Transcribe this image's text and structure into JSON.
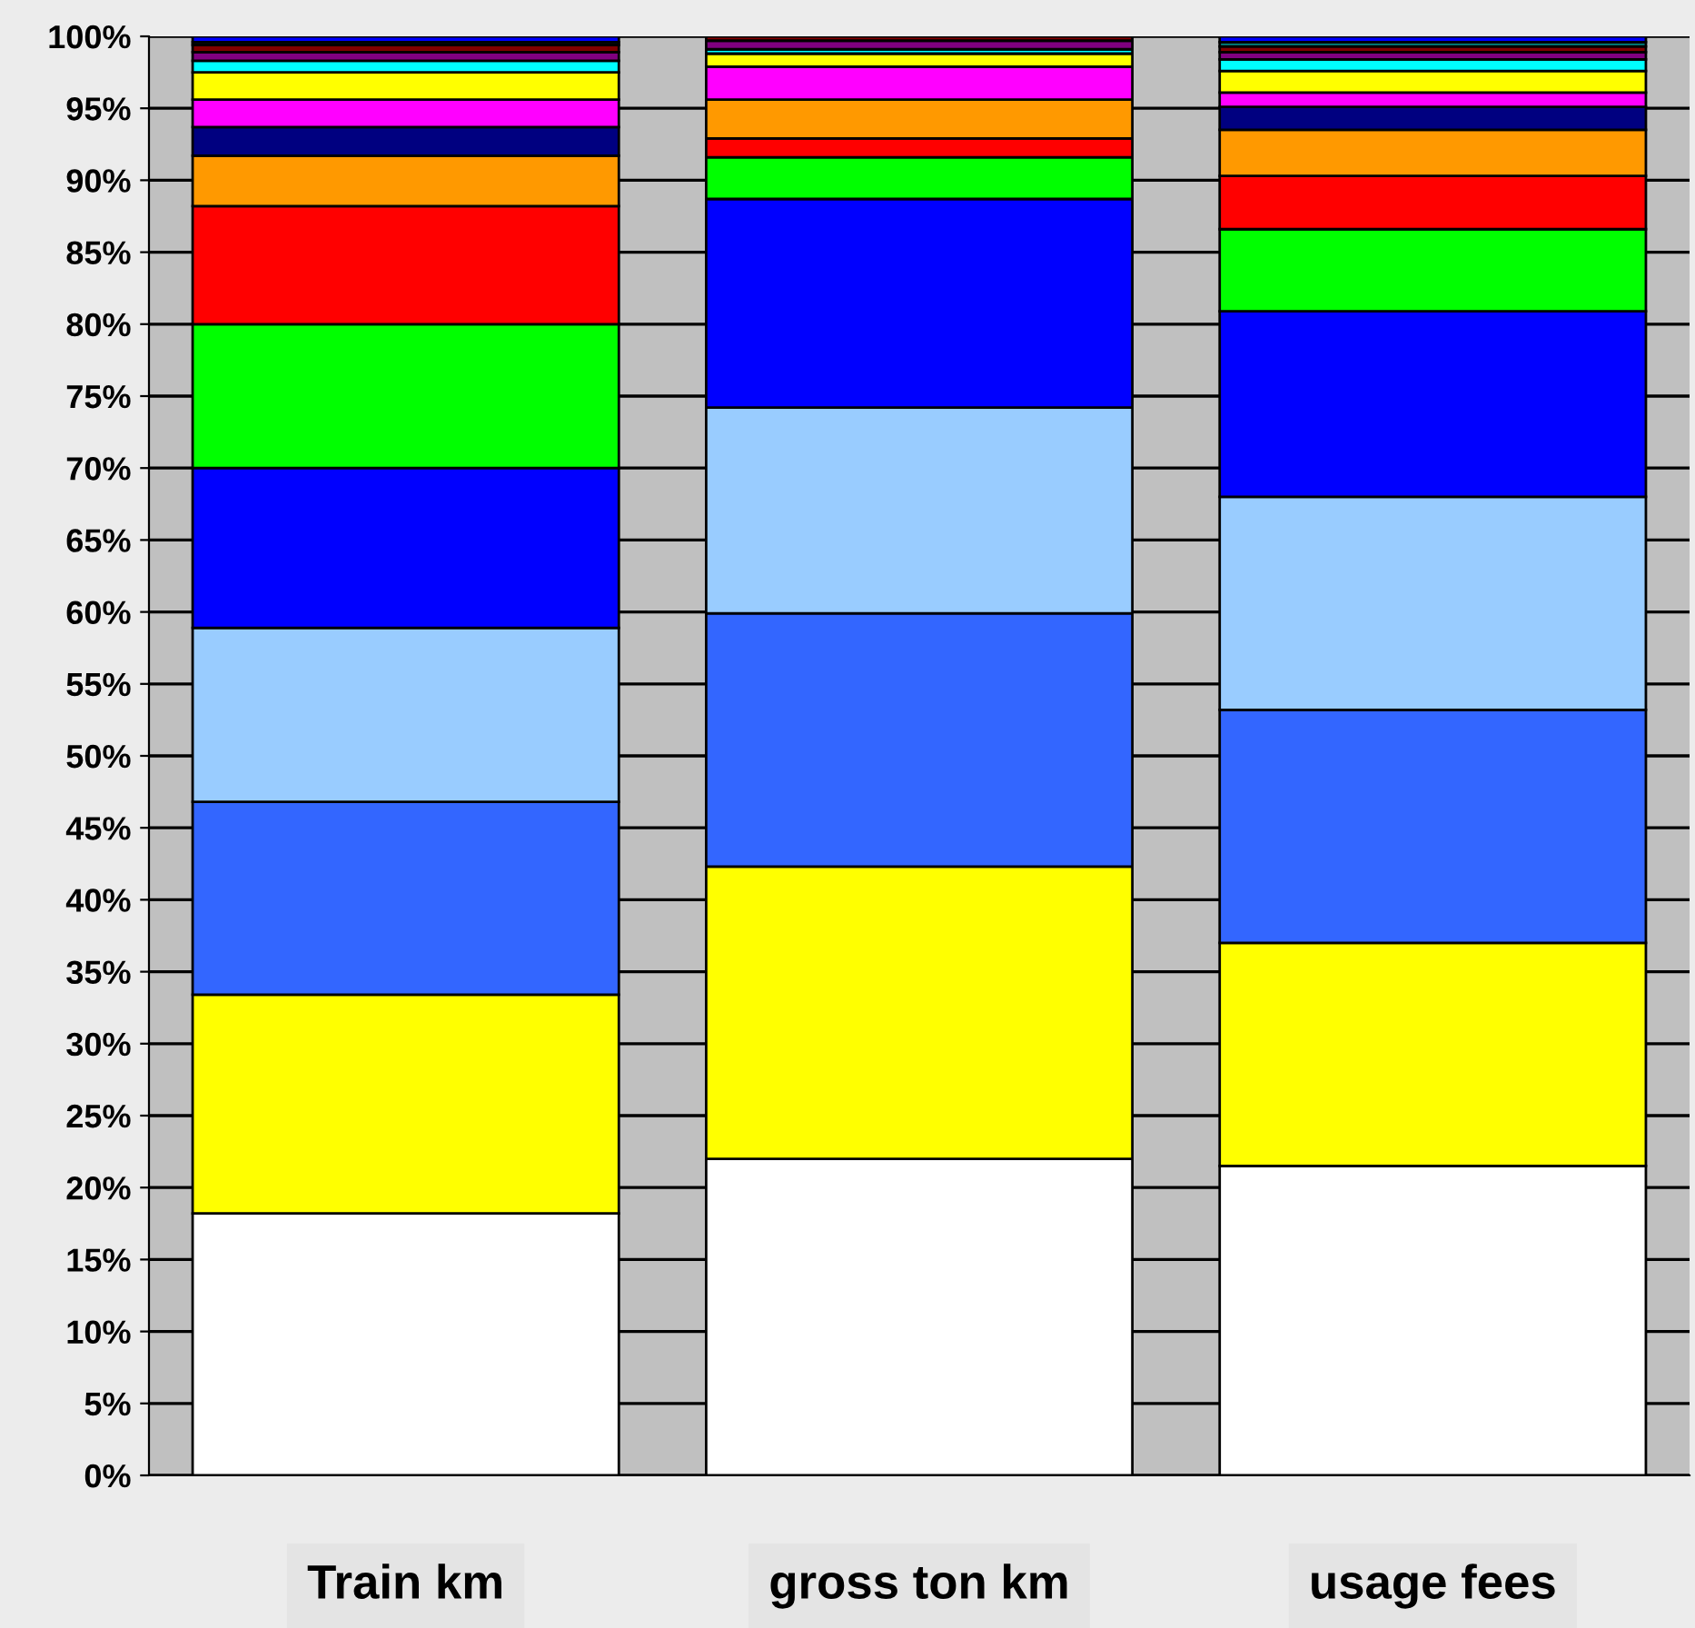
{
  "chart_data": {
    "type": "bar",
    "stacked": true,
    "categories": [
      "Train km",
      "gross ton km",
      "usage fees"
    ],
    "series": [
      {
        "color": "#ffffff",
        "values": [
          18.2,
          22.0,
          21.5
        ]
      },
      {
        "color": "#ffff00",
        "values": [
          15.2,
          20.3,
          15.5
        ]
      },
      {
        "color": "#3366ff",
        "values": [
          13.4,
          17.6,
          16.2
        ]
      },
      {
        "color": "#99ccff",
        "values": [
          12.1,
          14.3,
          14.8
        ]
      },
      {
        "color": "#0000ff",
        "values": [
          11.1,
          14.5,
          12.9
        ]
      },
      {
        "color": "#00ff00",
        "values": [
          10.0,
          2.9,
          5.7
        ]
      },
      {
        "color": "#ff0000",
        "values": [
          8.2,
          1.3,
          3.7
        ]
      },
      {
        "color": "#ff9900",
        "values": [
          3.5,
          2.7,
          3.2
        ]
      },
      {
        "color": "#000080",
        "values": [
          2.0,
          0,
          1.6
        ]
      },
      {
        "color": "#ff00ff",
        "values": [
          1.9,
          2.3,
          1.0
        ]
      },
      {
        "color": "#ffff00",
        "values": [
          1.9,
          0.9,
          1.5
        ]
      },
      {
        "color": "#00ffff",
        "values": [
          0.8,
          0.3,
          0.8
        ]
      },
      {
        "color": "#800080",
        "values": [
          0.6,
          0.6,
          0.5
        ]
      },
      {
        "color": "#800000",
        "values": [
          0.5,
          0.3,
          0.4
        ]
      },
      {
        "color": "#008080",
        "values": [
          0.2,
          0,
          0.3
        ]
      },
      {
        "color": "#0000ff",
        "values": [
          0.4,
          0,
          0.4
        ]
      }
    ],
    "ylim": [
      0,
      100
    ],
    "yticks": [
      {
        "value": 0,
        "label": "0%"
      },
      {
        "value": 5,
        "label": "5%"
      },
      {
        "value": 10,
        "label": "10%"
      },
      {
        "value": 15,
        "label": "15%"
      },
      {
        "value": 20,
        "label": "20%"
      },
      {
        "value": 25,
        "label": "25%"
      },
      {
        "value": 30,
        "label": "30%"
      },
      {
        "value": 35,
        "label": "35%"
      },
      {
        "value": 40,
        "label": "40%"
      },
      {
        "value": 45,
        "label": "45%"
      },
      {
        "value": 50,
        "label": "50%"
      },
      {
        "value": 55,
        "label": "55%"
      },
      {
        "value": 60,
        "label": "60%"
      },
      {
        "value": 65,
        "label": "65%"
      },
      {
        "value": 70,
        "label": "70%"
      },
      {
        "value": 75,
        "label": "75%"
      },
      {
        "value": 80,
        "label": "80%"
      },
      {
        "value": 85,
        "label": "85%"
      },
      {
        "value": 90,
        "label": "90%"
      },
      {
        "value": 95,
        "label": "95%"
      },
      {
        "value": 100,
        "label": "100%"
      }
    ],
    "grid": "y",
    "legend": false
  }
}
